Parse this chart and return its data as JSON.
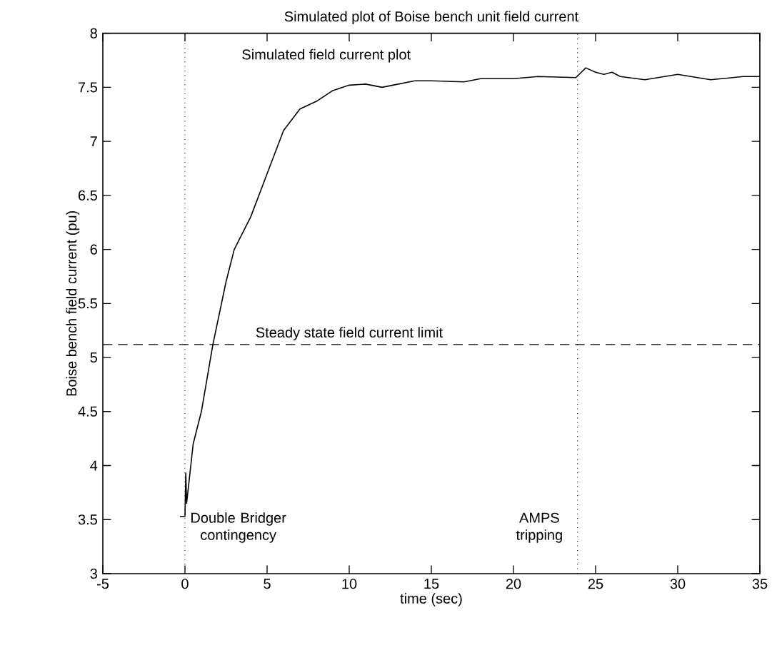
{
  "chart_data": {
    "type": "line",
    "title": "Simulated plot of Boise bench unit field current",
    "xlabel": "time (sec)",
    "ylabel": "Boise bench field current (pu)",
    "xlim": [
      -5,
      35
    ],
    "xticks": [
      -5,
      0,
      5,
      10,
      15,
      20,
      25,
      30,
      35
    ],
    "ylim": [
      3,
      8
    ],
    "yticks": [
      3,
      3.5,
      4,
      4.5,
      5,
      5.5,
      6,
      6.5,
      7,
      7.5,
      8
    ],
    "grid": false,
    "line_style": "solid",
    "series": [
      {
        "color": "#000000",
        "x": [
          -0.3,
          0,
          0.05,
          0.1,
          0.5,
          1,
          1.7,
          2.5,
          3,
          4,
          5,
          6,
          7,
          8,
          9,
          10,
          11,
          12,
          13,
          14,
          15,
          17,
          18,
          20,
          21.5,
          23.8,
          24,
          24.4,
          25,
          25.5,
          26,
          26.5,
          28,
          30,
          32,
          34,
          35
        ],
        "values": [
          3.53,
          3.53,
          3.93,
          3.65,
          4.2,
          4.5,
          5.12,
          5.7,
          6.0,
          6.3,
          6.7,
          7.1,
          7.3,
          7.37,
          7.47,
          7.52,
          7.53,
          7.5,
          7.53,
          7.56,
          7.56,
          7.55,
          7.58,
          7.58,
          7.6,
          7.59,
          7.62,
          7.68,
          7.64,
          7.62,
          7.64,
          7.6,
          7.57,
          7.62,
          7.57,
          7.6,
          7.6
        ]
      }
    ],
    "ref_lines": [
      {
        "axis": "y",
        "value": 5.12,
        "label": "Steady state field current limit",
        "line_style": "dashed",
        "color": "#000000"
      },
      {
        "axis": "x",
        "value": 0,
        "label": "Double Bridger contingency",
        "line_style": "dotted",
        "color": "#000000"
      },
      {
        "axis": "x",
        "value": 23.9,
        "label": "AMPS tripping",
        "line_style": "dotted",
        "color": "#000000"
      }
    ],
    "annotations": [
      "Simulated field current plot"
    ]
  }
}
